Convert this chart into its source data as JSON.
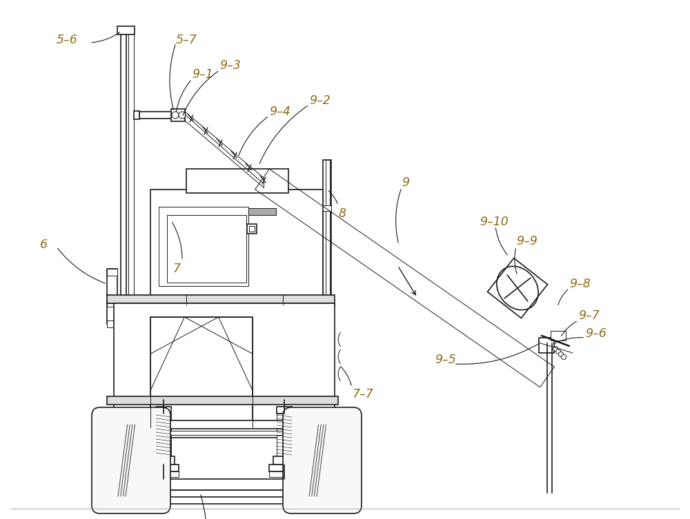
{
  "bg_color": "#ffffff",
  "line_color": "#1a1a1a",
  "label_color": "#8B6B14",
  "fig_width": 10.0,
  "fig_height": 7.53,
  "label_fontsize": 12.5
}
